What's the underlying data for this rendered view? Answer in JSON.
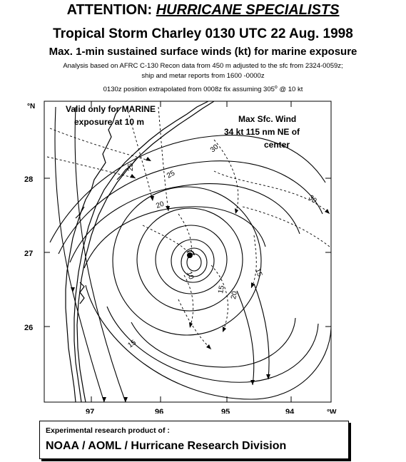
{
  "header": {
    "attention_prefix": "ATTENTION:",
    "attention_highlight": "HURRICANE SPECIALISTS",
    "storm_line": "Tropical Storm Charley  0130 UTC 22 Aug. 1998",
    "product_line": "Max. 1-min sustained surface winds (kt) for marine exposure",
    "analysis_line1": "Analysis based on  AFRC C-130 Recon data from 450 m  adjusted to the sfc from  2324-0059z;",
    "analysis_line2": "ship and metar reports from   1600 -0000z",
    "position_line_a": "0130z position extrapolated from 0008z fix assuming 305",
    "position_line_sup": "o",
    "position_line_b": " @  10 kt"
  },
  "map": {
    "valid_note_line1": "Valid only for MARINE",
    "valid_note_line2": "exposure at 10 m",
    "max_wind_line1": "Max Sfc. Wind",
    "max_wind_line2": "34 kt  115 nm NE of",
    "max_wind_line3": "center",
    "lat_unit": "°N",
    "lon_unit": "°W",
    "lat_labels": [
      "28",
      "27",
      "26"
    ],
    "lon_labels": [
      "97",
      "96",
      "95",
      "94"
    ],
    "isotach_labels": [
      "30",
      "30",
      "25",
      "20",
      "25",
      "15",
      "10",
      "15",
      "20",
      "15"
    ]
  },
  "footer": {
    "credit_line1": "Experimental research product of :",
    "credit_line2": "NOAA / AOML / Hurricane Research Division"
  }
}
